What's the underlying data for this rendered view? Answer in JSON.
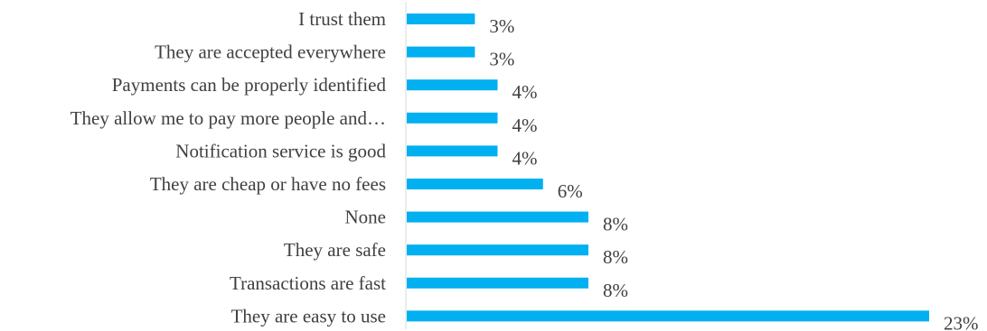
{
  "chart_data": {
    "type": "bar",
    "orientation": "horizontal",
    "categories": [
      "I trust them",
      "They are accepted everywhere",
      "Payments can be properly identified",
      "They allow me to pay more people and…",
      "Notification service is good",
      "They are cheap or have no fees",
      "None",
      "They are safe",
      "Transactions are fast",
      "They are easy to use"
    ],
    "values": [
      3,
      3,
      4,
      4,
      4,
      6,
      8,
      8,
      8,
      23
    ],
    "value_labels": [
      "3%",
      "3%",
      "4%",
      "4%",
      "4%",
      "6%",
      "8%",
      "8%",
      "8%",
      "23%"
    ],
    "unit": "%",
    "title": "",
    "xlabel": "",
    "ylabel": "",
    "xlim": [
      0,
      23
    ],
    "grid": false,
    "legend": "none",
    "bar_color": "#00B0F0",
    "axis_color": "#D9D9D9",
    "text_color": "#404040"
  }
}
